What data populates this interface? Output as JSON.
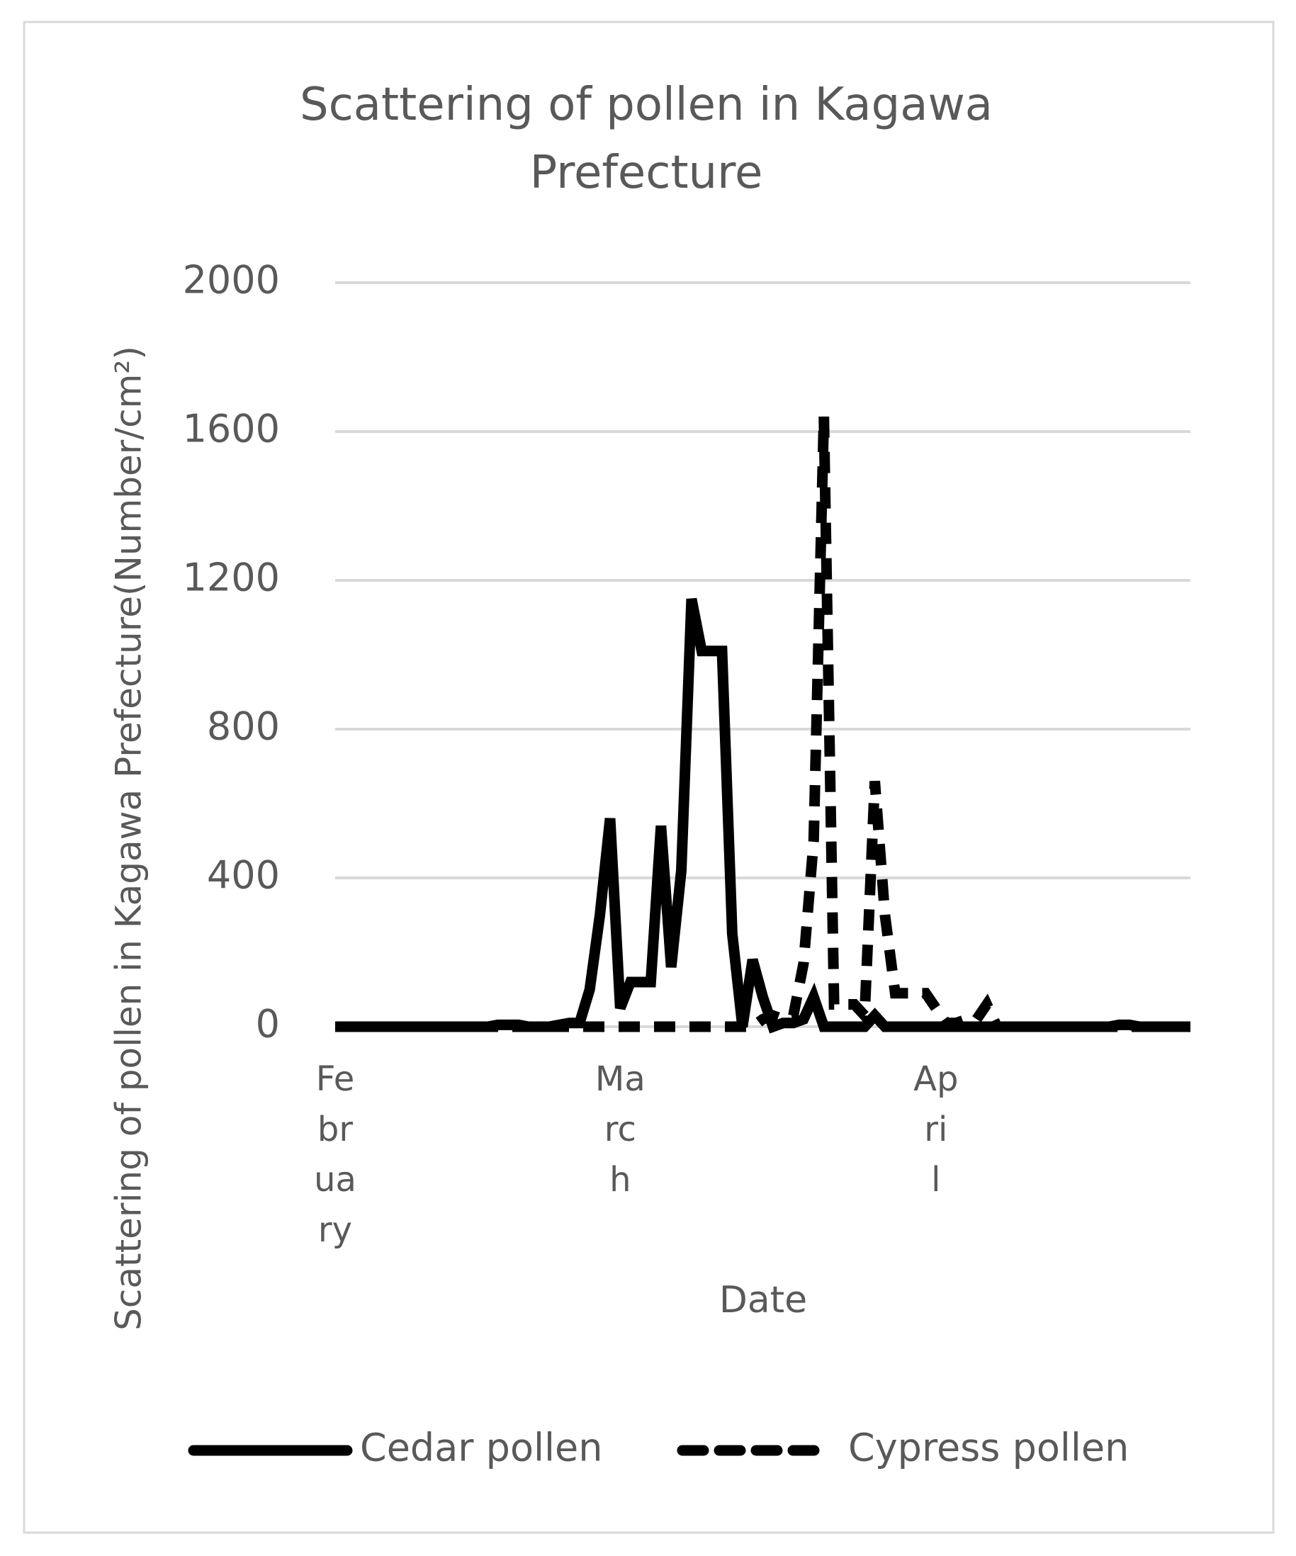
{
  "chart_data": {
    "type": "line",
    "title": "Scattering of pollen in Kagawa Prefecture",
    "x_label": "Date",
    "y_label": "Scattering of pollen in Kagawa Prefecture(Number/cm²)",
    "categories": [
      "February",
      null,
      null,
      null,
      null,
      null,
      null,
      null,
      null,
      null,
      null,
      null,
      null,
      null,
      null,
      null,
      null,
      null,
      null,
      null,
      null,
      null,
      null,
      null,
      null,
      null,
      null,
      null,
      "March",
      null,
      null,
      null,
      null,
      null,
      null,
      null,
      null,
      null,
      null,
      null,
      null,
      null,
      null,
      null,
      null,
      null,
      null,
      null,
      null,
      null,
      null,
      null,
      null,
      null,
      null,
      null,
      null,
      null,
      null,
      "April",
      null,
      null,
      null,
      null,
      null,
      null,
      null,
      null,
      null,
      null,
      null,
      null,
      null,
      null,
      null,
      null,
      null,
      null,
      null,
      null,
      null,
      null,
      null,
      null,
      null
    ],
    "series": [
      {
        "name": "Cedar pollen",
        "color": "#000000",
        "dash": false,
        "values": [
          0,
          0,
          0,
          0,
          0,
          0,
          0,
          0,
          0,
          0,
          0,
          0,
          0,
          0,
          0,
          0,
          5,
          5,
          5,
          0,
          0,
          0,
          5,
          10,
          10,
          100,
          300,
          560,
          50,
          120,
          120,
          120,
          540,
          160,
          420,
          1150,
          1010,
          1010,
          1010,
          250,
          0,
          180,
          80,
          0,
          10,
          10,
          20,
          80,
          0,
          0,
          0,
          0,
          0,
          30,
          0,
          0,
          0,
          0,
          0,
          0,
          0,
          0,
          0,
          0,
          0,
          0,
          0,
          0,
          0,
          0,
          0,
          0,
          0,
          0,
          0,
          0,
          0,
          5,
          5,
          0,
          0,
          0,
          0,
          0,
          0
        ]
      },
      {
        "name": "Cypress pollen",
        "color": "#000000",
        "dash": true,
        "values": [
          0,
          0,
          0,
          0,
          0,
          0,
          0,
          0,
          0,
          0,
          0,
          0,
          0,
          0,
          0,
          0,
          0,
          0,
          0,
          0,
          0,
          0,
          0,
          0,
          0,
          0,
          0,
          0,
          0,
          0,
          0,
          0,
          0,
          0,
          0,
          0,
          0,
          0,
          0,
          0,
          0,
          0,
          20,
          30,
          20,
          30,
          170,
          500,
          1640,
          60,
          60,
          60,
          30,
          660,
          300,
          90,
          90,
          90,
          90,
          50,
          10,
          10,
          20,
          20,
          60,
          0,
          0,
          0,
          0,
          0,
          0,
          0,
          0,
          0,
          0,
          0,
          0,
          0,
          0,
          0,
          0,
          0,
          0,
          0,
          0
        ]
      }
    ],
    "ylim": [
      0,
      2000
    ],
    "yticks": [
      0,
      400,
      800,
      1200,
      1600,
      2000
    ],
    "grid": true,
    "legend": "bottom"
  }
}
